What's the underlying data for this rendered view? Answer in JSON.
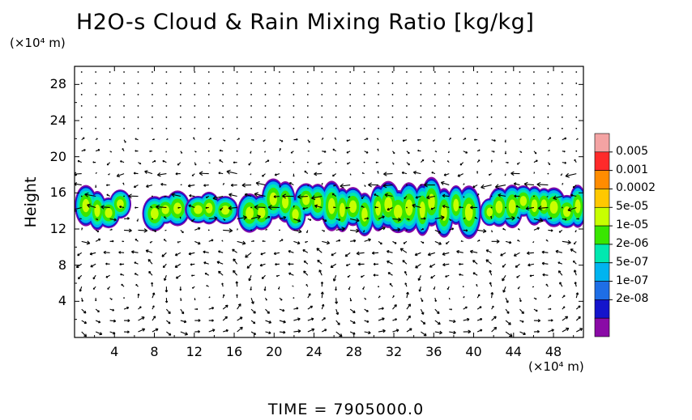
{
  "chart_data": {
    "type": "heatmap",
    "title": "H2O-s Cloud & Rain Mixing Ratio [kg/kg]",
    "ylabel": "Height",
    "y_unit": "(×10⁴ m)",
    "x_unit": "(×10⁴ m)",
    "time_label": "TIME  =  7905000.0",
    "xlim": [
      0,
      51
    ],
    "ylim": [
      0,
      30
    ],
    "x_ticks": [
      "4",
      "8",
      "12",
      "16",
      "20",
      "24",
      "28",
      "32",
      "36",
      "40",
      "44",
      "48"
    ],
    "x_tick_values": [
      4,
      8,
      12,
      16,
      20,
      24,
      28,
      32,
      36,
      40,
      44,
      48
    ],
    "y_ticks": [
      "4",
      "8",
      "12",
      "16",
      "20",
      "24",
      "28"
    ],
    "y_tick_values": [
      4,
      8,
      12,
      16,
      20,
      24,
      28
    ],
    "colorbar": {
      "labels": [
        "0.005",
        "0.001",
        "0.0002",
        "5e-05",
        "1e-05",
        "2e-06",
        "5e-07",
        "1e-07",
        "2e-08"
      ],
      "colors": [
        "#f4a3a3",
        "#ff2a2a",
        "#ff8c00",
        "#ffc800",
        "#c8ff00",
        "#39e600",
        "#00e8b0",
        "#00b4f0",
        "#1e6ee6",
        "#1414cc",
        "#8a0aa6"
      ]
    },
    "cloud_regions": [
      {
        "x": [
          0.5,
          5.0
        ],
        "y": [
          12.2,
          16.6
        ]
      },
      {
        "x": [
          7.6,
          11.0
        ],
        "y": [
          12.2,
          16.2
        ]
      },
      {
        "x": [
          11.8,
          15.5
        ],
        "y": [
          12.0,
          16.3
        ]
      },
      {
        "x": [
          17.0,
          40.0
        ],
        "y": [
          11.8,
          17.5
        ]
      },
      {
        "x": [
          41.0,
          51.0
        ],
        "y": [
          12.2,
          17.0
        ]
      }
    ],
    "wind_vectors": "quiver field over the full domain"
  }
}
